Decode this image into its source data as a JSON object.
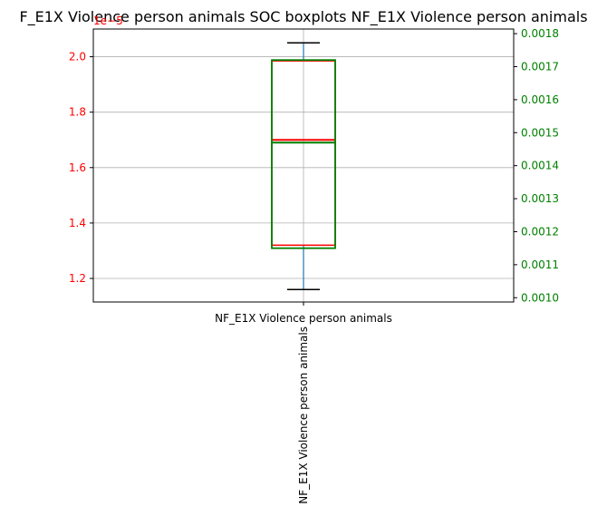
{
  "chart_data": {
    "type": "boxplot",
    "title": "F_E1X Violence person animals SOC boxplots NF_E1X Violence person animals",
    "category_label": "NF_E1X Violence person animals",
    "rotated_label": "NF_E1X Violence person animals",
    "grid": true,
    "left_axis": {
      "color": "#ff0000",
      "offset_label": "1e−5",
      "ylim": [
        1.115,
        2.1
      ],
      "ticks": [
        1.2,
        1.4,
        1.6,
        1.8,
        2.0
      ],
      "tick_labels": [
        "1.2",
        "1.4",
        "1.6",
        "1.8",
        "2.0"
      ]
    },
    "right_axis": {
      "color": "#008000",
      "ylim": [
        0.000987,
        0.001814
      ],
      "ticks": [
        0.001,
        0.0011,
        0.0012,
        0.0013,
        0.0014,
        0.0015,
        0.0016,
        0.0017,
        0.0018
      ],
      "tick_labels": [
        "0.0010",
        "0.0011",
        "0.0012",
        "0.0013",
        "0.0014",
        "0.0015",
        "0.0016",
        "0.0017",
        "0.0018"
      ]
    },
    "series": [
      {
        "axis": "left",
        "color": "#ff0000",
        "whisker_color": "#1f77b4",
        "cap_color": "#000000",
        "box_linecolor": "#ff0000",
        "whislo": 1.16,
        "q1": 1.32,
        "median": 1.7,
        "q3": 1.985,
        "whishi": 2.05
      },
      {
        "axis": "right",
        "color": "#008000",
        "q1": 0.00115,
        "median": 0.00147,
        "q3": 0.00172
      }
    ]
  }
}
